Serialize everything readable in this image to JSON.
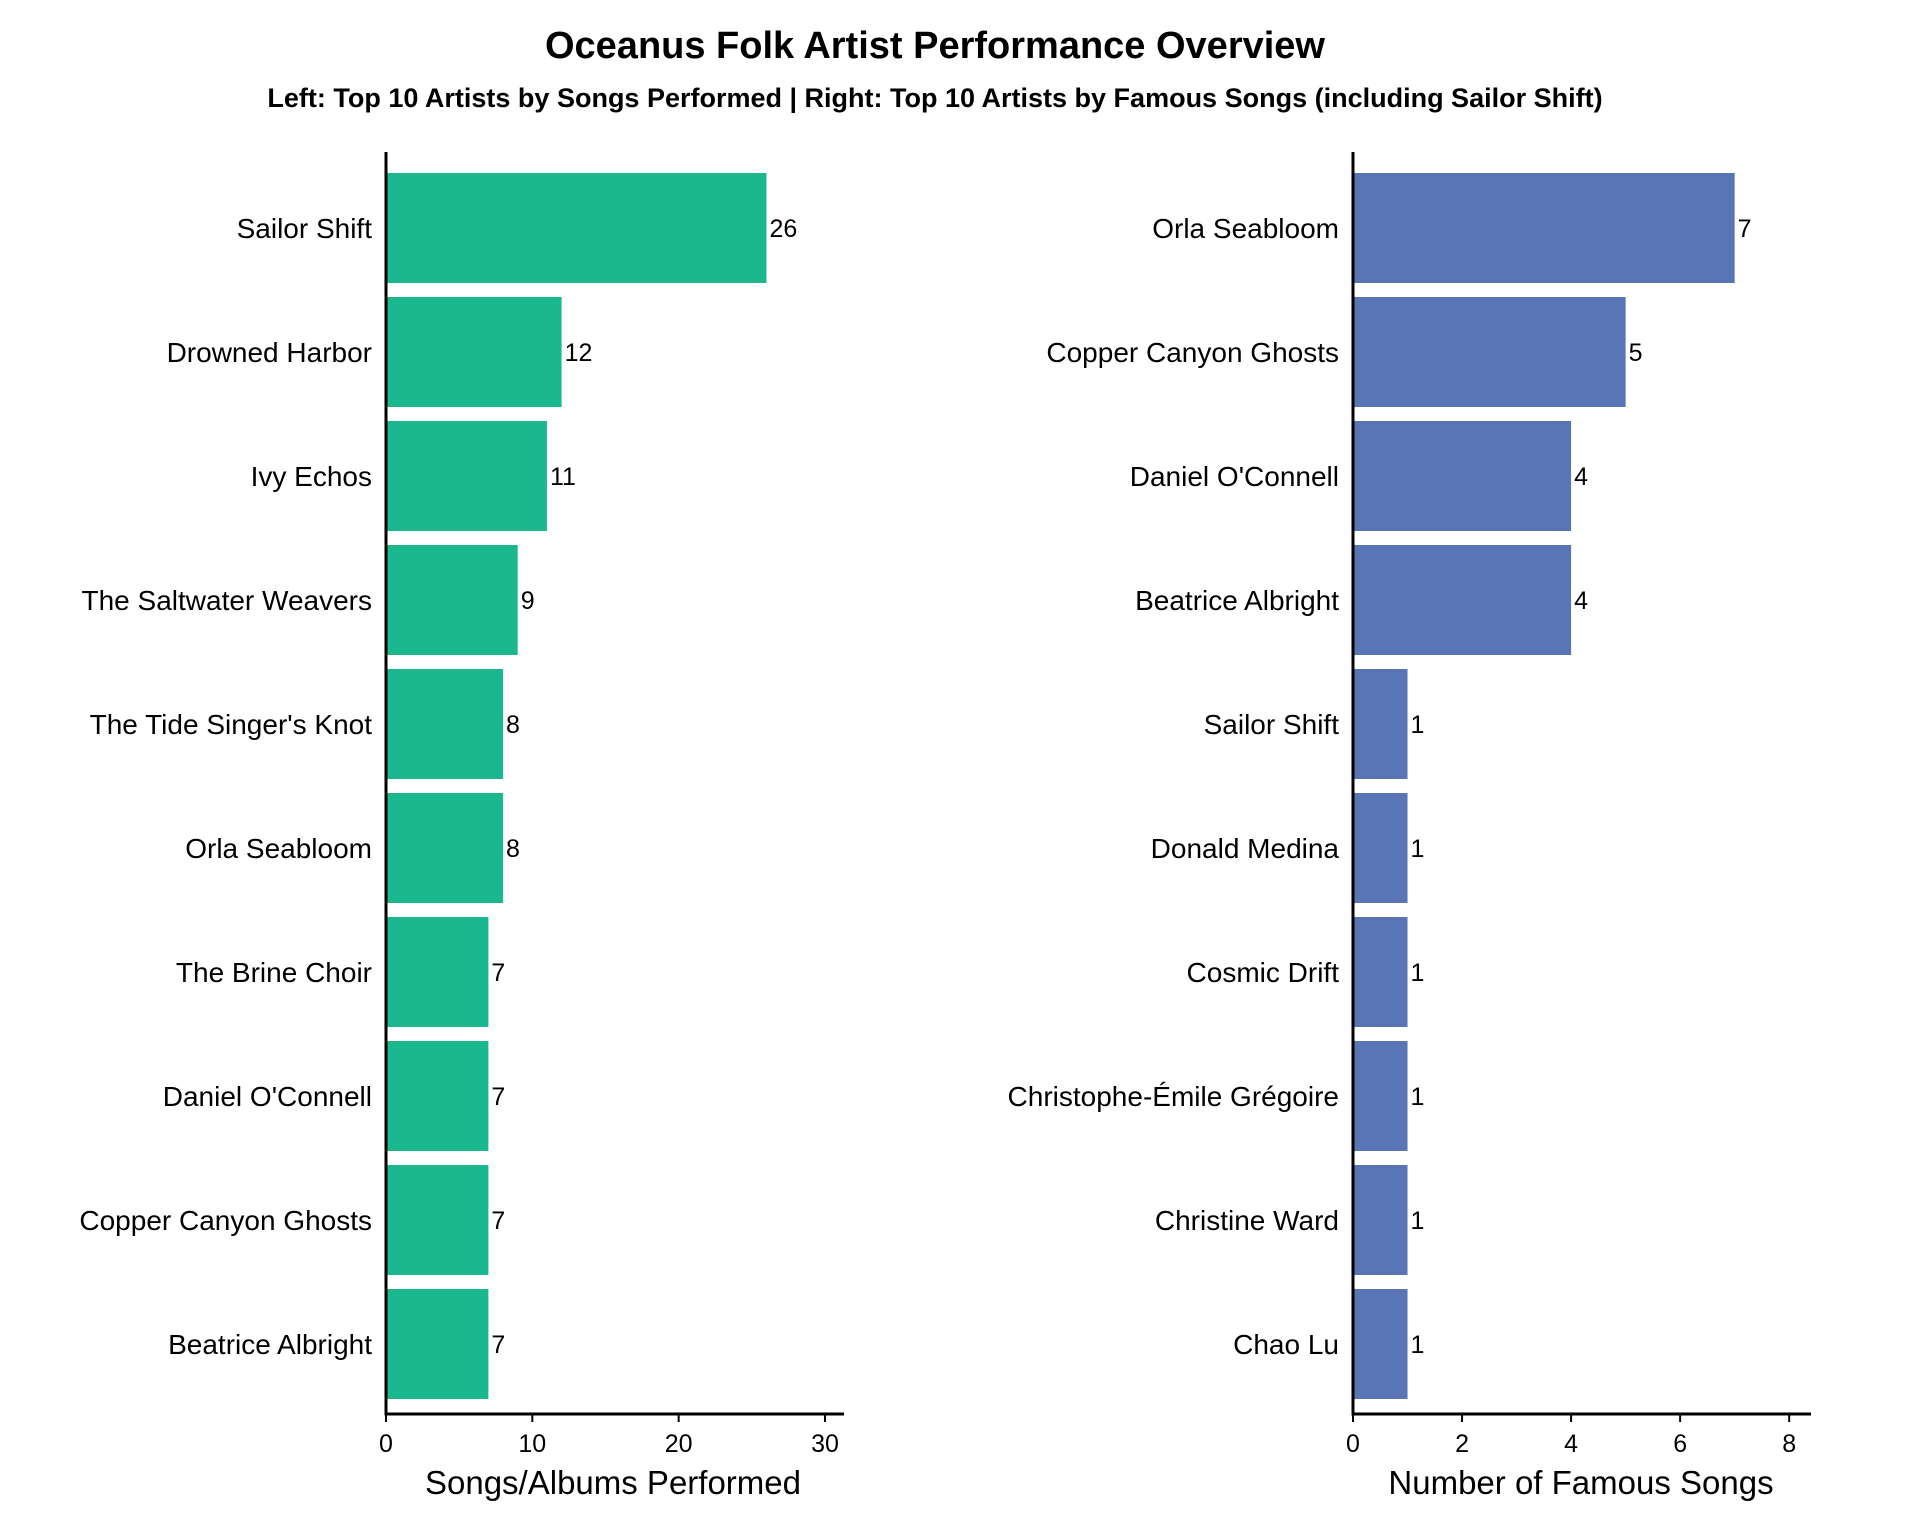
{
  "figure": {
    "title": "Oceanus Folk Artist Performance Overview",
    "subtitle": "Left: Top 10 Artists by Songs Performed | Right: Top 10 Artists by Famous Songs (including Sailor Shift)"
  },
  "chart_data": [
    {
      "type": "bar",
      "orientation": "horizontal",
      "categories": [
        "Sailor Shift",
        "Drowned Harbor",
        "Ivy Echos",
        "The Saltwater Weavers",
        "The Tide Singer's Knot",
        "Orla Seabloom",
        "The Brine Choir",
        "Daniel O'Connell",
        "Copper Canyon Ghosts",
        "Beatrice Albright"
      ],
      "values": [
        26,
        12,
        11,
        9,
        8,
        8,
        7,
        7,
        7,
        7
      ],
      "value_labels": [
        "26",
        "12",
        "11",
        "9",
        "8",
        "8",
        "7",
        "7",
        "7",
        "7"
      ],
      "xlabel": "Songs/Albums Performed",
      "xlim": [
        0,
        31.3
      ],
      "xticks": [
        0,
        10,
        20,
        30
      ],
      "xtick_labels": [
        "0",
        "10",
        "20",
        "30"
      ],
      "color": "#1bb890",
      "grid": false
    },
    {
      "type": "bar",
      "orientation": "horizontal",
      "categories": [
        "Orla Seabloom",
        "Copper Canyon Ghosts",
        "Daniel O'Connell",
        "Beatrice Albright",
        "Sailor Shift",
        "Donald Medina",
        "Cosmic Drift",
        "Christophe-Émile Grégoire",
        "Christine Ward",
        "Chao Lu"
      ],
      "values": [
        7,
        5,
        4,
        4,
        1,
        1,
        1,
        1,
        1,
        1
      ],
      "value_labels": [
        "7",
        "5",
        "4",
        "4",
        "1",
        "1",
        "1",
        "1",
        "1",
        "1"
      ],
      "xlabel": "Number of Famous Songs",
      "xlim": [
        0,
        8.4
      ],
      "xticks": [
        0,
        2,
        4,
        6,
        8
      ],
      "xtick_labels": [
        "0",
        "2",
        "4",
        "6",
        "8"
      ],
      "color": "#5a75b6",
      "grid": false
    }
  ]
}
